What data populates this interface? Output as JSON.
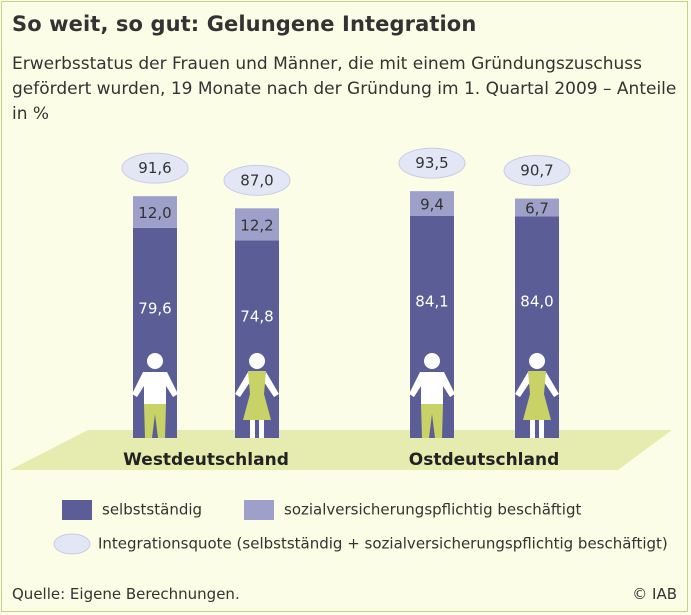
{
  "header": {
    "title": "So weit, so gut: Gelungene Integration",
    "subtitle": "Erwerbsstatus der Frauen und Männer, die mit einem Gründungszuschuss gefördert wurden, 19 Monate nach der Gründung im 1. Quartal 2009 – Anteile in %"
  },
  "chart_data": {
    "type": "bar",
    "stacked": true,
    "title": "So weit, so gut: Gelungene Integration",
    "subtitle": "Erwerbsstatus der Frauen und Männer, die mit einem Gründungszuschuss gefördert wurden, 19 Monate nach der Gründung im 1. Quartal 2009 – Anteile in %",
    "groups": [
      "Westdeutschland",
      "Ostdeutschland"
    ],
    "bars": [
      {
        "group": "Westdeutschland",
        "gender": "Männer",
        "selbststaendig": 79.6,
        "sozial": 12.0,
        "quote": 91.6,
        "label_selbst": "79,6",
        "label_sozial": "12,0",
        "label_quote": "91,6"
      },
      {
        "group": "Westdeutschland",
        "gender": "Frauen",
        "selbststaendig": 74.8,
        "sozial": 12.2,
        "quote": 87.0,
        "label_selbst": "74,8",
        "label_sozial": "12,2",
        "label_quote": "87,0"
      },
      {
        "group": "Ostdeutschland",
        "gender": "Männer",
        "selbststaendig": 84.1,
        "sozial": 9.4,
        "quote": 93.5,
        "label_selbst": "84,1",
        "label_sozial": "9,4",
        "label_quote": "93,5"
      },
      {
        "group": "Ostdeutschland",
        "gender": "Frauen",
        "selbststaendig": 84.0,
        "sozial": 6.7,
        "quote": 90.7,
        "label_selbst": "84,0",
        "label_sozial": "6,7",
        "label_quote": "90,7"
      }
    ],
    "series": [
      {
        "name": "selbstständig",
        "color": "#5b5e96"
      },
      {
        "name": "sozialversicherungspflichtig beschäftigt",
        "color": "#9da0c9"
      }
    ],
    "quote_label": "Integrationsquote (selbstständig + sozialversicherungspflichtig beschäftigt)"
  },
  "colors": {
    "selbststaendig": "#5b5e96",
    "sozial": "#9da0c9",
    "ellipse": "#e3e6f4",
    "floor": "#e6ecaf",
    "figure_green": "#c8d267"
  },
  "legend": {
    "selbst": "selbstständig",
    "sozial": "sozialversicherungspflichtig beschäftigt",
    "quote": "Integrationsquote (selbstständig + sozialversicherungspflichtig beschäftigt)"
  },
  "footer": {
    "source": "Quelle: Eigene Berechnungen.",
    "copyright": "© IAB"
  }
}
